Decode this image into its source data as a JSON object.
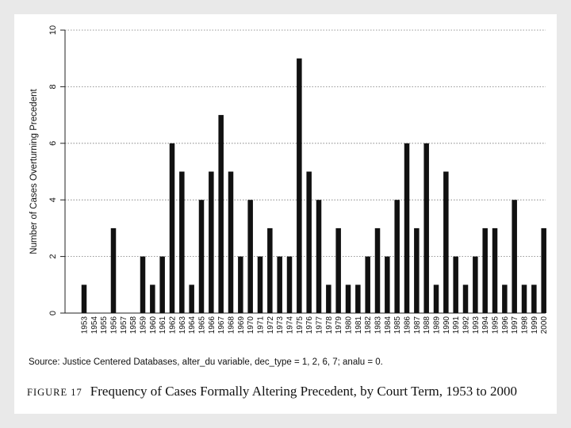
{
  "chart_data": {
    "type": "bar",
    "ylabel": "Number of Cases Overturning Precedent",
    "xlabel": "",
    "ylim": [
      0,
      10
    ],
    "yticks": [
      0,
      2,
      4,
      6,
      8,
      10
    ],
    "grid": "horizontal dotted",
    "categories": [
      "1953",
      "1954",
      "1955",
      "1956",
      "1957",
      "1958",
      "1959",
      "1960",
      "1961",
      "1962",
      "1963",
      "1964",
      "1965",
      "1966",
      "1967",
      "1968",
      "1969",
      "1970",
      "1971",
      "1972",
      "1973",
      "1974",
      "1975",
      "1976",
      "1977",
      "1978",
      "1979",
      "1980",
      "1981",
      "1982",
      "1983",
      "1984",
      "1985",
      "1986",
      "1987",
      "1988",
      "1989",
      "1990",
      "1991",
      "1992",
      "1993",
      "1994",
      "1995",
      "1996",
      "1997",
      "1998",
      "1999",
      "2000"
    ],
    "values": [
      1,
      0,
      0,
      3,
      0,
      0,
      2,
      1,
      2,
      6,
      5,
      1,
      4,
      5,
      7,
      5,
      2,
      4,
      2,
      3,
      2,
      2,
      9,
      5,
      4,
      1,
      3,
      1,
      1,
      2,
      3,
      2,
      4,
      6,
      3,
      6,
      1,
      5,
      2,
      1,
      2,
      3,
      3,
      1,
      4,
      1,
      1,
      3
    ],
    "colors": {
      "bar": "#111111",
      "axis": "#222222",
      "grid": "#777777"
    }
  },
  "source_note": "Source: Justice Centered Databases, alter_du variable, dec_type = 1, 2, 6, 7; analu = 0.",
  "caption": {
    "label": "FIGURE 17",
    "text": "Frequency of Cases Formally Altering Precedent, by Court Term, 1953 to 2000"
  }
}
